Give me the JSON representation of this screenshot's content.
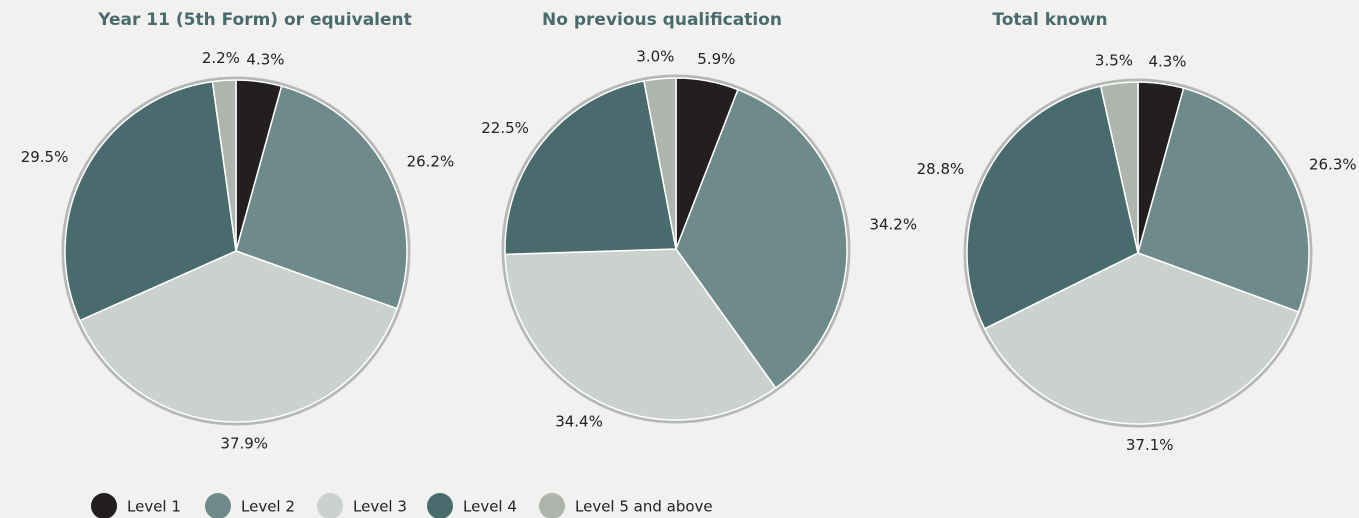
{
  "chart_data": [
    {
      "type": "pie",
      "title": "Year 11 (5th Form) or equivalent",
      "values": [
        4.3,
        26.2,
        37.9,
        29.5,
        2.2
      ],
      "value_labels": [
        "4.3%",
        "26.2%",
        "37.9%",
        "29.5%",
        "2.2%"
      ]
    },
    {
      "type": "pie",
      "title": "No previous qualification",
      "values": [
        5.9,
        34.2,
        34.4,
        22.5,
        3.0
      ],
      "value_labels": [
        "5.9%",
        "34.2%",
        "34.4%",
        "22.5%",
        "3.0%"
      ]
    },
    {
      "type": "pie",
      "title": "Total known",
      "values": [
        4.3,
        26.3,
        37.1,
        28.8,
        3.5
      ],
      "value_labels": [
        "4.3%",
        "26.3%",
        "37.1%",
        "28.8%",
        "3.5%"
      ]
    }
  ],
  "legend": {
    "categories": [
      "Level 1",
      "Level 2",
      "Level 3",
      "Level 4",
      "Level 5 and above"
    ],
    "colors": [
      "#231f20",
      "#6e8a8a",
      "#cbd1cd",
      "#4a6b6d",
      "#adb5ac"
    ]
  }
}
